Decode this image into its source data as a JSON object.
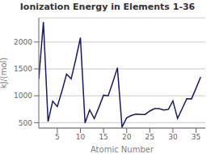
{
  "chart_data": {
    "type": "line",
    "title": "Ionization Energy in Elements 1-36",
    "xlabel": "Atomic Number",
    "ylabel": "kJ/(mol)",
    "x": [
      1,
      2,
      3,
      4,
      5,
      6,
      7,
      8,
      9,
      10,
      11,
      12,
      13,
      14,
      15,
      16,
      17,
      18,
      19,
      20,
      21,
      22,
      23,
      24,
      25,
      26,
      27,
      28,
      29,
      30,
      31,
      32,
      33,
      34,
      35,
      36
    ],
    "values": [
      1312,
      2372,
      520,
      900,
      800,
      1086,
      1402,
      1314,
      1681,
      2081,
      496,
      738,
      577,
      786,
      1012,
      999,
      1251,
      1521,
      419,
      590,
      633,
      659,
      651,
      653,
      717,
      762,
      760,
      737,
      745,
      906,
      579,
      762,
      947,
      941,
      1140,
      1351
    ],
    "color": "#191970",
    "xlim": [
      1,
      37
    ],
    "ylim": [
      400,
      2450
    ],
    "xticks": [
      5,
      10,
      15,
      20,
      25,
      30,
      35
    ],
    "yticks": [
      500,
      1000,
      1500,
      2000
    ],
    "grid": true
  }
}
